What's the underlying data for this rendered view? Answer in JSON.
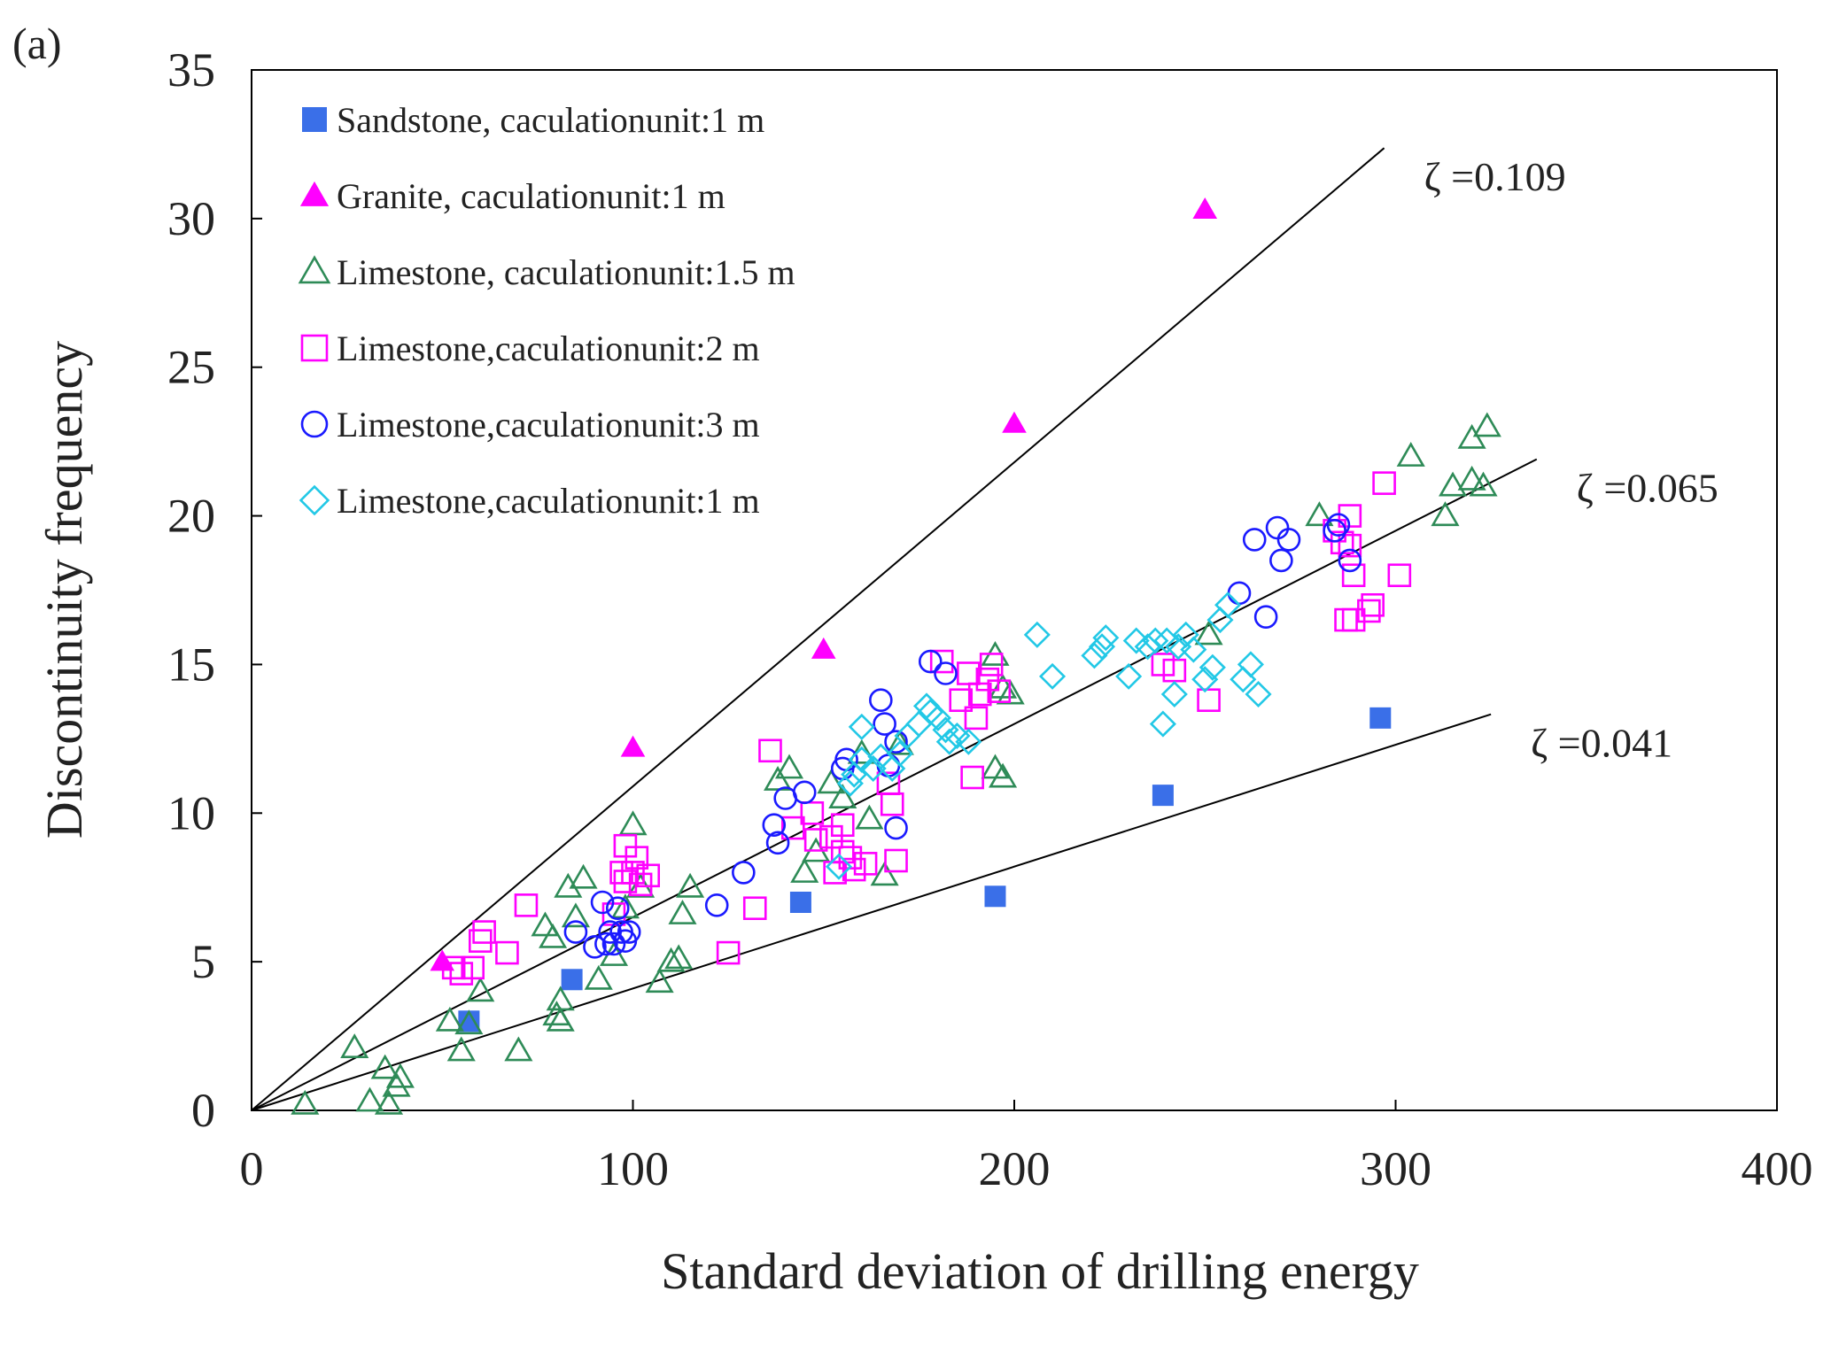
{
  "panel_label": "(a)",
  "chart_data": {
    "type": "scatter",
    "xlabel": "Standard deviation of drilling energy",
    "ylabel": "Discontinuity frequency",
    "xlim": [
      0,
      400
    ],
    "ylim": [
      0,
      35
    ],
    "x_ticks": [
      "0",
      "100",
      "200",
      "300",
      "400"
    ],
    "y_ticks": [
      "0",
      "5",
      "10",
      "15",
      "20",
      "25",
      "30",
      "35"
    ],
    "grid": false,
    "legend_position": "top-left",
    "series": [
      {
        "name": "Sandstone, caculationunit:1 m",
        "marker": "filled-square",
        "color": "#3a6fe8",
        "points": [
          [
            57,
            3
          ],
          [
            84,
            4.4
          ],
          [
            144,
            7
          ],
          [
            195,
            7.2
          ],
          [
            239,
            10.6
          ],
          [
            296,
            13.2
          ]
        ]
      },
      {
        "name": "Granite, caculationunit:1 m",
        "marker": "filled-triangle",
        "color": "#ff00ff",
        "points": [
          [
            50,
            5
          ],
          [
            100,
            12.2
          ],
          [
            150,
            15.5
          ],
          [
            200,
            23.1
          ],
          [
            250,
            30.3
          ]
        ]
      },
      {
        "name": "Limestone, caculationunit:1.5 m",
        "marker": "open-triangle",
        "color": "#2e8b57",
        "points": [
          [
            14,
            0.2
          ],
          [
            27,
            2.1
          ],
          [
            31,
            0.3
          ],
          [
            35,
            1.4
          ],
          [
            36,
            0.2
          ],
          [
            38,
            0.8
          ],
          [
            39,
            1.1
          ],
          [
            52,
            3
          ],
          [
            55,
            2
          ],
          [
            57,
            2.9
          ],
          [
            60,
            4
          ],
          [
            70,
            2
          ],
          [
            77,
            6.2
          ],
          [
            79,
            5.8
          ],
          [
            80,
            3.2
          ],
          [
            81,
            3.7
          ],
          [
            81,
            3
          ],
          [
            83,
            7.5
          ],
          [
            85,
            6.5
          ],
          [
            87,
            7.8
          ],
          [
            91,
            4.4
          ],
          [
            95,
            5.2
          ],
          [
            98,
            6.8
          ],
          [
            100,
            9.6
          ],
          [
            102,
            7.5
          ],
          [
            107,
            4.3
          ],
          [
            110,
            5
          ],
          [
            112,
            5.1
          ],
          [
            113,
            6.6
          ],
          [
            115,
            7.5
          ],
          [
            138,
            11.1
          ],
          [
            141,
            11.5
          ],
          [
            145,
            8
          ],
          [
            148,
            8.7
          ],
          [
            152,
            11
          ],
          [
            155,
            10.5
          ],
          [
            160,
            12
          ],
          [
            162,
            9.8
          ],
          [
            166,
            7.9
          ],
          [
            170,
            12.3
          ],
          [
            195,
            11.5
          ],
          [
            195,
            15.3
          ],
          [
            197,
            11.2
          ],
          [
            197,
            14.2
          ],
          [
            199,
            14
          ],
          [
            251,
            16
          ],
          [
            280,
            20
          ],
          [
            304,
            22
          ],
          [
            313,
            20
          ],
          [
            315,
            21
          ],
          [
            320,
            21.2
          ],
          [
            320,
            22.6
          ],
          [
            323,
            21
          ],
          [
            324,
            23
          ]
        ]
      },
      {
        "name": "Limestone,caculationunit:2 m",
        "marker": "open-square",
        "color": "#ff00ff",
        "points": [
          [
            53,
            4.8
          ],
          [
            55,
            4.6
          ],
          [
            58,
            4.8
          ],
          [
            60,
            5.7
          ],
          [
            61,
            6
          ],
          [
            67,
            5.3
          ],
          [
            72,
            6.9
          ],
          [
            95,
            6.6
          ],
          [
            97,
            8
          ],
          [
            98,
            8.9
          ],
          [
            98,
            7.7
          ],
          [
            100,
            8
          ],
          [
            101,
            8.5
          ],
          [
            102,
            7.6
          ],
          [
            104,
            7.9
          ],
          [
            125,
            5.3
          ],
          [
            132,
            6.8
          ],
          [
            136,
            12.1
          ],
          [
            142,
            9.5
          ],
          [
            147,
            10
          ],
          [
            148,
            9.1
          ],
          [
            152,
            9.2
          ],
          [
            153,
            8
          ],
          [
            155,
            8.7
          ],
          [
            155,
            9.6
          ],
          [
            157,
            8.5
          ],
          [
            158,
            8.1
          ],
          [
            161,
            8.3
          ],
          [
            167,
            11
          ],
          [
            168,
            10.3
          ],
          [
            169,
            8.4
          ],
          [
            181,
            15.1
          ],
          [
            186,
            13.8
          ],
          [
            188,
            14.7
          ],
          [
            189,
            11.2
          ],
          [
            190,
            13.2
          ],
          [
            191,
            14
          ],
          [
            193,
            14.5
          ],
          [
            194,
            15
          ],
          [
            196,
            14.1
          ],
          [
            239,
            15
          ],
          [
            242,
            14.8
          ],
          [
            251,
            13.8
          ],
          [
            284,
            19.5
          ],
          [
            286,
            19.1
          ],
          [
            287,
            16.5
          ],
          [
            288,
            20
          ],
          [
            288,
            19
          ],
          [
            289,
            18
          ],
          [
            289,
            16.5
          ],
          [
            293,
            16.8
          ],
          [
            294,
            17
          ],
          [
            297,
            21.1
          ],
          [
            301,
            18
          ]
        ]
      },
      {
        "name": "Limestone,caculationunit:3 m",
        "marker": "open-circle",
        "color": "#1a1aff",
        "points": [
          [
            85,
            6
          ],
          [
            90,
            5.5
          ],
          [
            92,
            7
          ],
          [
            93,
            5.6
          ],
          [
            94,
            6
          ],
          [
            95,
            5.6
          ],
          [
            96,
            6.8
          ],
          [
            97,
            6
          ],
          [
            98,
            5.7
          ],
          [
            99,
            6
          ],
          [
            122,
            6.9
          ],
          [
            129,
            8
          ],
          [
            137,
            9.6
          ],
          [
            138,
            9
          ],
          [
            140,
            10.5
          ],
          [
            145,
            10.7
          ],
          [
            155,
            11.5
          ],
          [
            156,
            11.8
          ],
          [
            165,
            13.8
          ],
          [
            166,
            13
          ],
          [
            167,
            11.6
          ],
          [
            169,
            12.4
          ],
          [
            169,
            9.5
          ],
          [
            178,
            15.1
          ],
          [
            182,
            14.7
          ],
          [
            259,
            17.4
          ],
          [
            263,
            19.2
          ],
          [
            266,
            16.6
          ],
          [
            269,
            19.6
          ],
          [
            270,
            18.5
          ],
          [
            272,
            19.2
          ],
          [
            284,
            19.5
          ],
          [
            285,
            19.7
          ],
          [
            288,
            18.5
          ]
        ]
      },
      {
        "name": "Limestone,caculationunit:1 m",
        "marker": "open-diamond",
        "color": "#22c8e6",
        "points": [
          [
            154,
            8.2
          ],
          [
            157,
            11
          ],
          [
            158,
            11.3
          ],
          [
            160,
            11.8
          ],
          [
            160,
            12.9
          ],
          [
            163,
            11.5
          ],
          [
            165,
            11.9
          ],
          [
            168,
            11.5
          ],
          [
            170,
            12
          ],
          [
            172,
            12.6
          ],
          [
            175,
            13
          ],
          [
            177,
            13.6
          ],
          [
            178,
            13.4
          ],
          [
            180,
            13.2
          ],
          [
            182,
            12.8
          ],
          [
            183,
            12.4
          ],
          [
            185,
            12.6
          ],
          [
            188,
            12.4
          ],
          [
            206,
            16
          ],
          [
            210,
            14.6
          ],
          [
            221,
            15.3
          ],
          [
            223,
            15.6
          ],
          [
            224,
            15.9
          ],
          [
            230,
            14.6
          ],
          [
            232,
            15.8
          ],
          [
            235,
            15.6
          ],
          [
            237,
            15.8
          ],
          [
            239,
            13
          ],
          [
            240,
            15.8
          ],
          [
            242,
            14
          ],
          [
            243,
            15.6
          ],
          [
            245,
            16
          ],
          [
            247,
            15.5
          ],
          [
            250,
            14.5
          ],
          [
            252,
            14.9
          ],
          [
            254,
            16.5
          ],
          [
            256,
            17
          ],
          [
            260,
            14.5
          ],
          [
            262,
            15
          ],
          [
            264,
            14
          ]
        ]
      }
    ],
    "fit_lines": [
      {
        "label": "ζ =0.109",
        "slope": 0.109,
        "x_end": 297
      },
      {
        "label": "ζ =0.065",
        "slope": 0.065,
        "x_end": 337
      },
      {
        "label": "ζ =0.041",
        "slope": 0.041,
        "x_end": 325
      }
    ]
  }
}
